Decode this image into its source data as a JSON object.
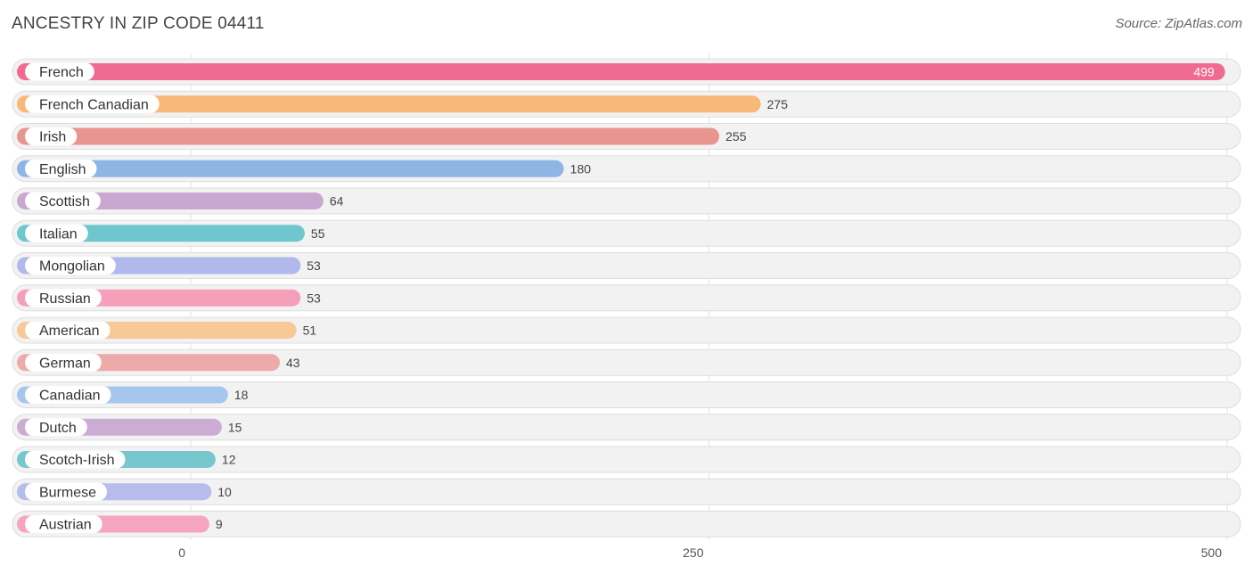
{
  "header": {
    "title": "ANCESTRY IN ZIP CODE 04411",
    "source": "Source: ZipAtlas.com"
  },
  "chart_data": {
    "type": "bar",
    "orientation": "horizontal",
    "title": "ANCESTRY IN ZIP CODE 04411",
    "xlabel": "",
    "ylabel": "",
    "xlim": [
      0,
      500
    ],
    "xticks": [
      0,
      250,
      500
    ],
    "grid": true,
    "categories": [
      "French",
      "French Canadian",
      "Irish",
      "English",
      "Scottish",
      "Italian",
      "Mongolian",
      "Russian",
      "American",
      "German",
      "Canadian",
      "Dutch",
      "Scotch-Irish",
      "Burmese",
      "Austrian"
    ],
    "values": [
      499,
      275,
      255,
      180,
      64,
      55,
      53,
      53,
      51,
      43,
      18,
      15,
      12,
      10,
      9
    ],
    "colors": [
      "#f06a92",
      "#f8b878",
      "#e89590",
      "#8fb5e5",
      "#c9a7d0",
      "#6ec6cf",
      "#b0b8ec",
      "#f59fbb",
      "#f8c896",
      "#eeaaa8",
      "#a7c6ee",
      "#cbadd3",
      "#78c7cf",
      "#b6bdec",
      "#f5a5c0"
    ]
  }
}
